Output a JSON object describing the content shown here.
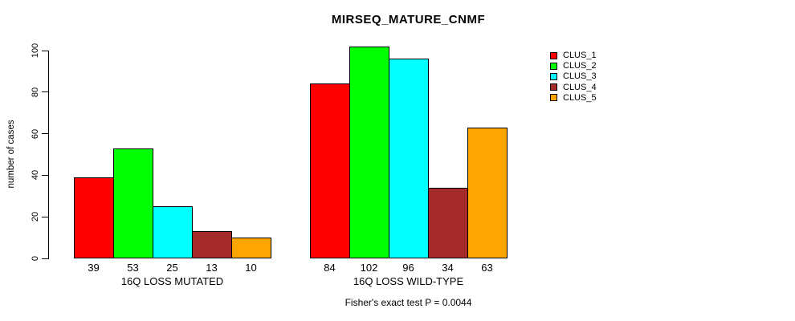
{
  "chart_data": {
    "type": "bar",
    "title": "MIRSEQ_MATURE_CNMF",
    "subtitle": "Fisher's exact test P = 0.0044",
    "ylabel": "number of cases",
    "xlabel": "",
    "ylim": [
      0,
      100
    ],
    "yticks": [
      0,
      20,
      40,
      60,
      80,
      100
    ],
    "grid": false,
    "legend_position": "right",
    "categories": [
      "16Q LOSS MUTATED",
      "16Q LOSS WILD-TYPE"
    ],
    "series": [
      {
        "name": "CLUS_1",
        "color": "#ff0000",
        "values": [
          39,
          84
        ]
      },
      {
        "name": "CLUS_2",
        "color": "#00ff00",
        "values": [
          53,
          102
        ]
      },
      {
        "name": "CLUS_3",
        "color": "#00ffff",
        "values": [
          25,
          96
        ]
      },
      {
        "name": "CLUS_4",
        "color": "#a52a2a",
        "values": [
          13,
          34
        ]
      },
      {
        "name": "CLUS_5",
        "color": "#ffa500",
        "values": [
          10,
          63
        ]
      }
    ],
    "bar_value_labels": [
      [
        39,
        53,
        25,
        13,
        10
      ],
      [
        84,
        102,
        96,
        34,
        63
      ]
    ],
    "axis_color": "#000000",
    "bar_border_color": "#000000"
  }
}
